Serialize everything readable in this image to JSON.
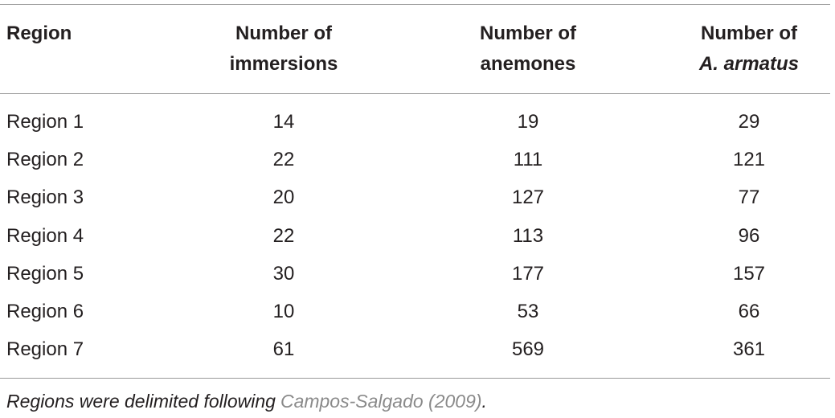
{
  "table": {
    "header": [
      [
        "Region"
      ],
      [
        "Number of",
        "immersions"
      ],
      [
        "Number of",
        "anemones"
      ],
      [
        "Number of",
        "A. armatus"
      ]
    ],
    "rows": [
      [
        "Region 1",
        14,
        19,
        29
      ],
      [
        "Region 2",
        22,
        111,
        121
      ],
      [
        "Region 3",
        20,
        127,
        77
      ],
      [
        "Region 4",
        22,
        113,
        96
      ],
      [
        "Region 5",
        30,
        177,
        157
      ],
      [
        "Region 6",
        10,
        53,
        66
      ],
      [
        "Region 7",
        61,
        569,
        361
      ]
    ]
  },
  "footnote": {
    "before": "Regions were delimited following",
    "citation": "Campos-Salgado (2009)",
    "after": "."
  }
}
